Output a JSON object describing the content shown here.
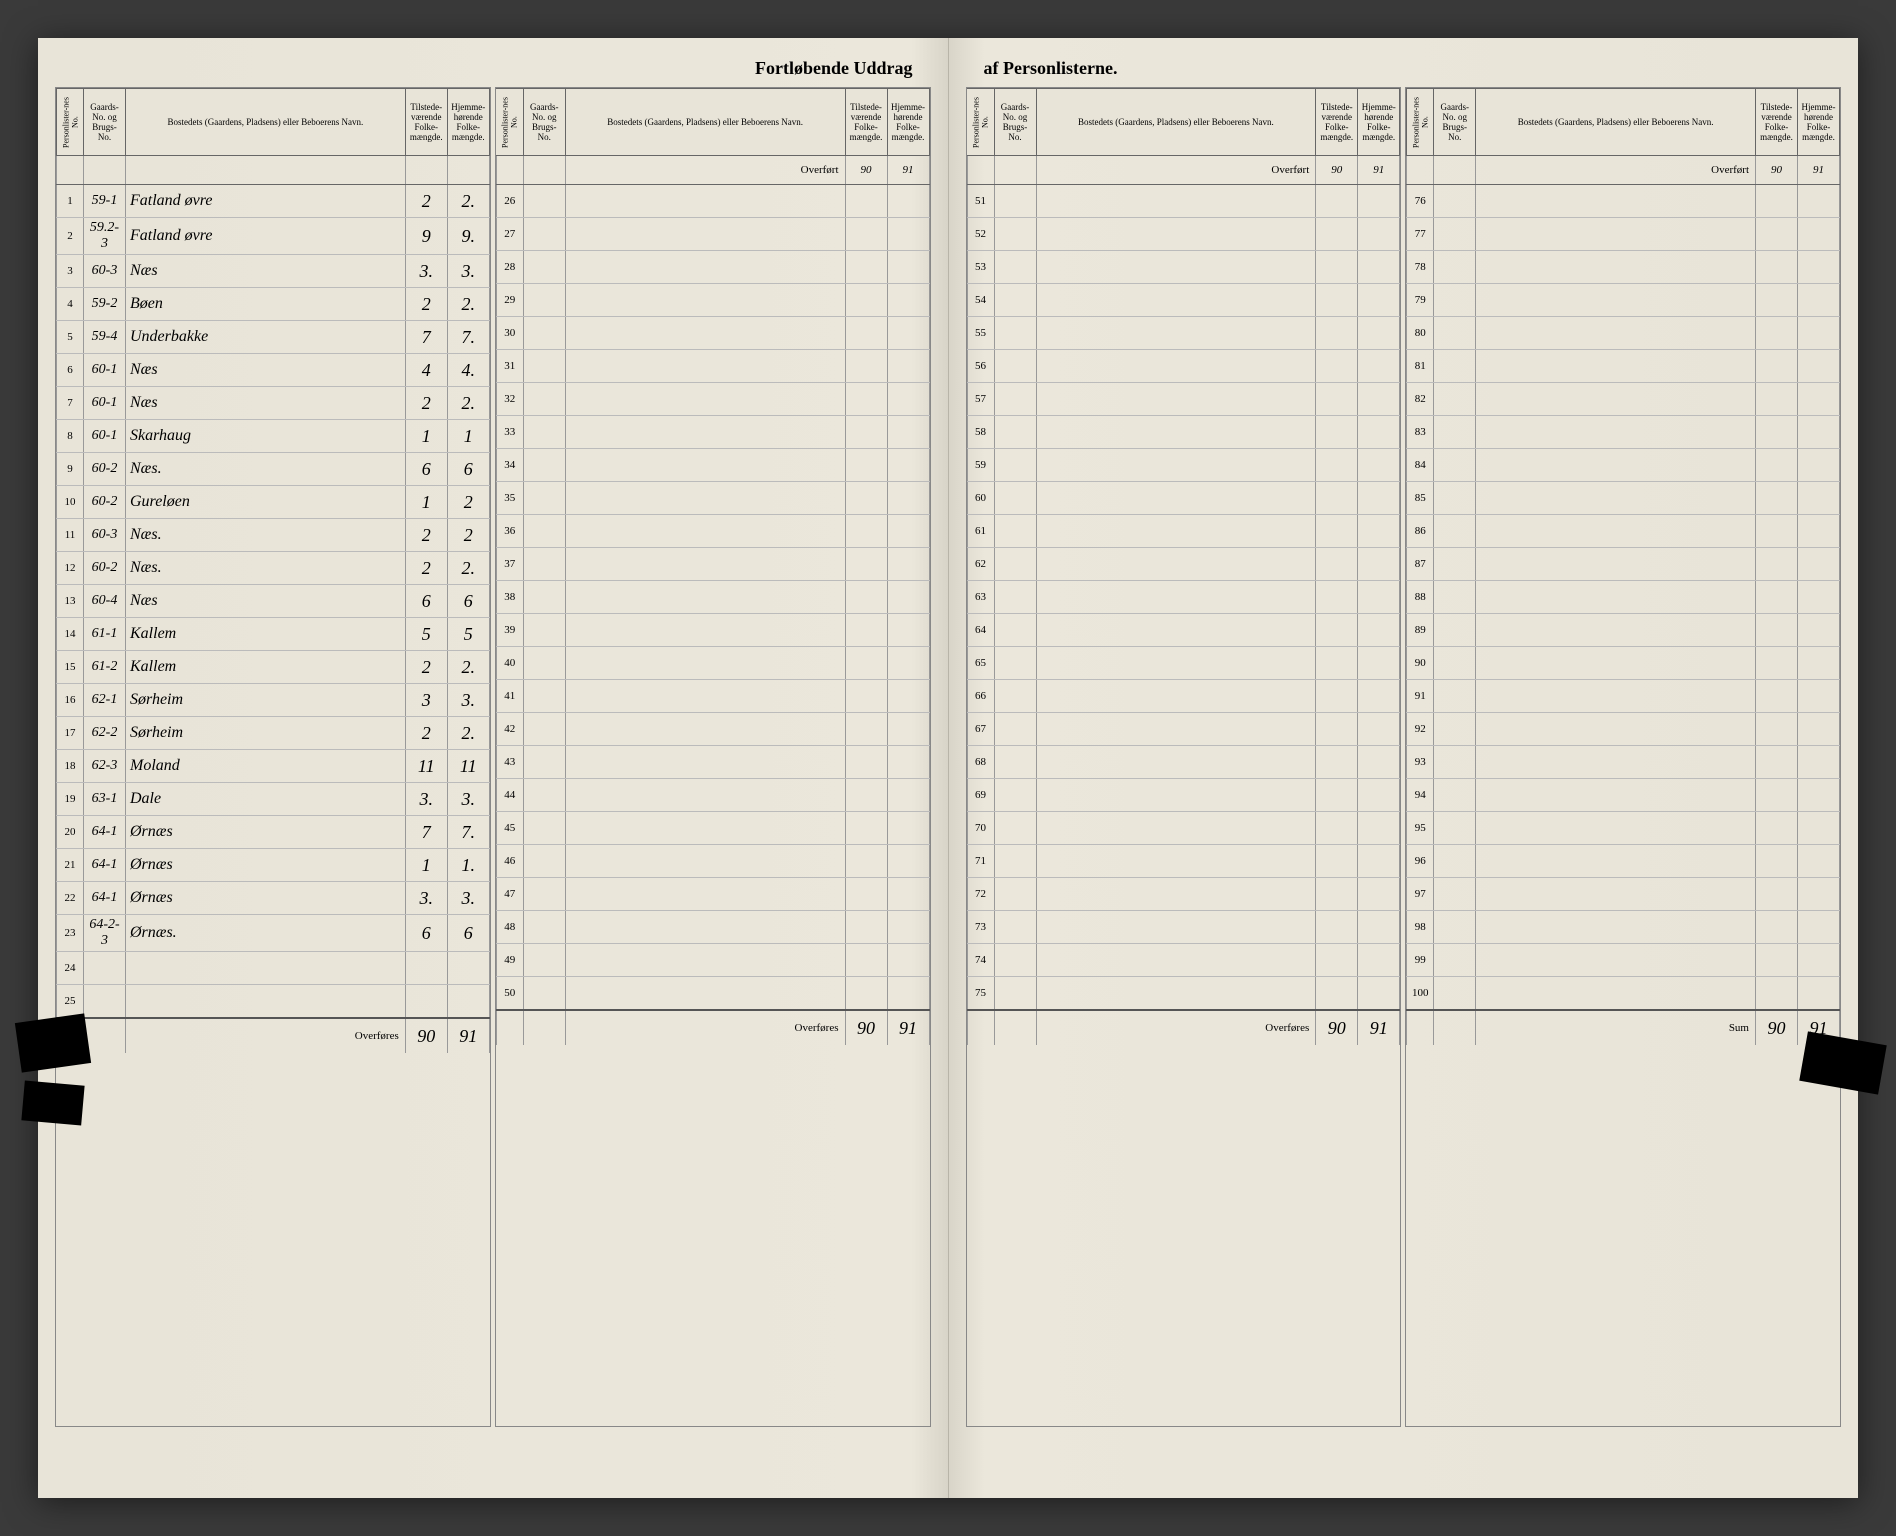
{
  "title_left": "Fortløbende Uddrag",
  "title_right": "af Personlisterne.",
  "headers": {
    "personliste": "Personlister-nes No.",
    "gaards": "Gaards-No. og Brugs-No.",
    "bosted": "Bostedets (Gaardens, Pladsens) eller Beboerens Navn.",
    "tilstede": "Tilstede-værende Folke-mængde.",
    "hjemme": "Hjemme-hørende Folke-mængde."
  },
  "overfort_label": "Overført",
  "overfores_label": "Overføres",
  "sum_label": "Sum",
  "overfort_tilstede": "90",
  "overfort_hjemme": "91",
  "totals_tilstede": "90",
  "totals_hjemme": "91",
  "col1": [
    {
      "n": "1",
      "g": "59-1",
      "b": "Fatland øvre",
      "t": "2",
      "h": "2."
    },
    {
      "n": "2",
      "g": "59.2-3",
      "b": "Fatland øvre",
      "t": "9",
      "h": "9."
    },
    {
      "n": "3",
      "g": "60-3",
      "b": "Næs",
      "t": "3.",
      "h": "3."
    },
    {
      "n": "4",
      "g": "59-2",
      "b": "Bøen",
      "t": "2",
      "h": "2."
    },
    {
      "n": "5",
      "g": "59-4",
      "b": "Underbakke",
      "t": "7",
      "h": "7."
    },
    {
      "n": "6",
      "g": "60-1",
      "b": "Næs",
      "t": "4",
      "h": "4."
    },
    {
      "n": "7",
      "g": "60-1",
      "b": "Næs",
      "t": "2",
      "h": "2."
    },
    {
      "n": "8",
      "g": "60-1",
      "b": "Skarhaug",
      "t": "1",
      "h": "1"
    },
    {
      "n": "9",
      "g": "60-2",
      "b": "Næs.",
      "t": "6",
      "h": "6"
    },
    {
      "n": "10",
      "g": "60-2",
      "b": "Gureløen",
      "t": "1",
      "h": "2"
    },
    {
      "n": "11",
      "g": "60-3",
      "b": "Næs.",
      "t": "2",
      "h": "2"
    },
    {
      "n": "12",
      "g": "60-2",
      "b": "Næs.",
      "t": "2",
      "h": "2."
    },
    {
      "n": "13",
      "g": "60-4",
      "b": "Næs",
      "t": "6",
      "h": "6"
    },
    {
      "n": "14",
      "g": "61-1",
      "b": "Kallem",
      "t": "5",
      "h": "5"
    },
    {
      "n": "15",
      "g": "61-2",
      "b": "Kallem",
      "t": "2",
      "h": "2."
    },
    {
      "n": "16",
      "g": "62-1",
      "b": "Sørheim",
      "t": "3",
      "h": "3."
    },
    {
      "n": "17",
      "g": "62-2",
      "b": "Sørheim",
      "t": "2",
      "h": "2."
    },
    {
      "n": "18",
      "g": "62-3",
      "b": "Moland",
      "t": "11",
      "h": "11"
    },
    {
      "n": "19",
      "g": "63-1",
      "b": "Dale",
      "t": "3.",
      "h": "3."
    },
    {
      "n": "20",
      "g": "64-1",
      "b": "Ørnæs",
      "t": "7",
      "h": "7."
    },
    {
      "n": "21",
      "g": "64-1",
      "b": "Ørnæs",
      "t": "1",
      "h": "1."
    },
    {
      "n": "22",
      "g": "64-1",
      "b": "Ørnæs",
      "t": "3.",
      "h": "3."
    },
    {
      "n": "23",
      "g": "64-2-3",
      "b": "Ørnæs.",
      "t": "6",
      "h": "6"
    },
    {
      "n": "24",
      "g": "",
      "b": "",
      "t": "",
      "h": ""
    },
    {
      "n": "25",
      "g": "",
      "b": "",
      "t": "",
      "h": ""
    }
  ],
  "col2_start": 26,
  "col3_start": 51,
  "col4_start": 76
}
